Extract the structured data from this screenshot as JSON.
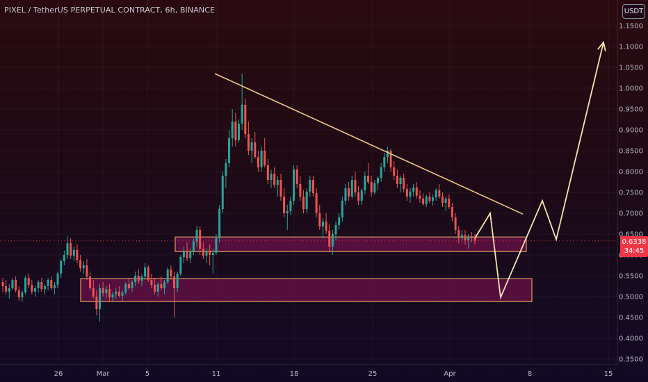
{
  "header": {
    "title": "PIXEL / TetherUS PERPETUAL CONTRACT, 6h, BINANCE",
    "currency_button": "USDT"
  },
  "last_price": {
    "value": "0.6338",
    "countdown": "34:45"
  },
  "colors": {
    "up": "#26a69a",
    "down": "#ef5350",
    "trendline": "#f0c987",
    "zone_fill": "#6b1248",
    "zone_border": "#d9a15a",
    "projection": "#f3e3b0",
    "price_tag": "#f23645"
  },
  "chart_data": {
    "type": "candlestick",
    "timeframe": "6h",
    "x_tick_labels": [
      "26",
      "Mar",
      "5",
      "11",
      "18",
      "25",
      "Apr",
      "8",
      "15"
    ],
    "y_tick_labels": [
      "1.1500",
      "1.1000",
      "1.0500",
      "1.0000",
      "0.9500",
      "0.9000",
      "0.8500",
      "0.8000",
      "0.7500",
      "0.7000",
      "0.6500",
      "0.6000",
      "0.5500",
      "0.5000",
      "0.4500",
      "0.4000",
      "0.3500"
    ],
    "ylim": [
      0.34,
      1.17
    ],
    "last_price": 0.6338,
    "candles": [
      [
        0.535,
        0.545,
        0.51,
        0.525
      ],
      [
        0.525,
        0.54,
        0.505,
        0.512
      ],
      [
        0.512,
        0.53,
        0.495,
        0.52
      ],
      [
        0.52,
        0.545,
        0.515,
        0.54
      ],
      [
        0.54,
        0.548,
        0.51,
        0.515
      ],
      [
        0.515,
        0.525,
        0.49,
        0.498
      ],
      [
        0.498,
        0.515,
        0.488,
        0.51
      ],
      [
        0.51,
        0.55,
        0.505,
        0.545
      ],
      [
        0.545,
        0.555,
        0.52,
        0.528
      ],
      [
        0.528,
        0.54,
        0.505,
        0.512
      ],
      [
        0.512,
        0.525,
        0.5,
        0.52
      ],
      [
        0.52,
        0.54,
        0.51,
        0.535
      ],
      [
        0.535,
        0.545,
        0.512,
        0.518
      ],
      [
        0.518,
        0.53,
        0.505,
        0.525
      ],
      [
        0.525,
        0.545,
        0.515,
        0.54
      ],
      [
        0.54,
        0.548,
        0.515,
        0.52
      ],
      [
        0.52,
        0.535,
        0.505,
        0.528
      ],
      [
        0.528,
        0.56,
        0.52,
        0.555
      ],
      [
        0.555,
        0.59,
        0.545,
        0.585
      ],
      [
        0.585,
        0.61,
        0.575,
        0.6
      ],
      [
        0.6,
        0.645,
        0.59,
        0.628
      ],
      [
        0.628,
        0.64,
        0.59,
        0.598
      ],
      [
        0.598,
        0.62,
        0.585,
        0.612
      ],
      [
        0.612,
        0.625,
        0.58,
        0.588
      ],
      [
        0.588,
        0.6,
        0.56,
        0.568
      ],
      [
        0.568,
        0.585,
        0.555,
        0.575
      ],
      [
        0.575,
        0.59,
        0.54,
        0.548
      ],
      [
        0.548,
        0.56,
        0.515,
        0.52
      ],
      [
        0.52,
        0.54,
        0.495,
        0.5
      ],
      [
        0.5,
        0.515,
        0.455,
        0.47
      ],
      [
        0.47,
        0.53,
        0.44,
        0.52
      ],
      [
        0.52,
        0.535,
        0.5,
        0.508
      ],
      [
        0.508,
        0.525,
        0.495,
        0.518
      ],
      [
        0.518,
        0.53,
        0.49,
        0.498
      ],
      [
        0.498,
        0.512,
        0.488,
        0.505
      ],
      [
        0.505,
        0.52,
        0.495,
        0.512
      ],
      [
        0.512,
        0.525,
        0.498,
        0.502
      ],
      [
        0.502,
        0.515,
        0.49,
        0.51
      ],
      [
        0.51,
        0.535,
        0.505,
        0.53
      ],
      [
        0.53,
        0.545,
        0.515,
        0.52
      ],
      [
        0.52,
        0.54,
        0.51,
        0.535
      ],
      [
        0.535,
        0.56,
        0.525,
        0.55
      ],
      [
        0.55,
        0.565,
        0.53,
        0.538
      ],
      [
        0.538,
        0.555,
        0.525,
        0.548
      ],
      [
        0.548,
        0.58,
        0.54,
        0.57
      ],
      [
        0.57,
        0.575,
        0.535,
        0.54
      ],
      [
        0.54,
        0.555,
        0.52,
        0.528
      ],
      [
        0.528,
        0.545,
        0.505,
        0.512
      ],
      [
        0.512,
        0.535,
        0.5,
        0.53
      ],
      [
        0.53,
        0.548,
        0.515,
        0.52
      ],
      [
        0.52,
        0.54,
        0.505,
        0.535
      ],
      [
        0.535,
        0.57,
        0.53,
        0.565
      ],
      [
        0.565,
        0.575,
        0.54,
        0.548
      ],
      [
        0.548,
        0.56,
        0.45,
        0.52
      ],
      [
        0.52,
        0.56,
        0.51,
        0.555
      ],
      [
        0.555,
        0.6,
        0.55,
        0.595
      ],
      [
        0.595,
        0.62,
        0.58,
        0.61
      ],
      [
        0.61,
        0.63,
        0.585,
        0.592
      ],
      [
        0.592,
        0.615,
        0.58,
        0.608
      ],
      [
        0.608,
        0.64,
        0.6,
        0.632
      ],
      [
        0.632,
        0.67,
        0.62,
        0.66
      ],
      [
        0.66,
        0.668,
        0.6,
        0.615
      ],
      [
        0.615,
        0.63,
        0.59,
        0.598
      ],
      [
        0.598,
        0.615,
        0.58,
        0.61
      ],
      [
        0.61,
        0.625,
        0.575,
        0.6
      ],
      [
        0.6,
        0.615,
        0.555,
        0.605
      ],
      [
        0.605,
        0.65,
        0.6,
        0.64
      ],
      [
        0.64,
        0.72,
        0.63,
        0.71
      ],
      [
        0.71,
        0.8,
        0.7,
        0.79
      ],
      [
        0.79,
        0.83,
        0.76,
        0.82
      ],
      [
        0.82,
        0.9,
        0.81,
        0.88
      ],
      [
        0.88,
        0.95,
        0.86,
        0.92
      ],
      [
        0.92,
        0.94,
        0.86,
        0.875
      ],
      [
        0.875,
        0.925,
        0.87,
        0.915
      ],
      [
        0.915,
        1.035,
        0.9,
        0.96
      ],
      [
        0.96,
        0.975,
        0.88,
        0.89
      ],
      [
        0.89,
        0.92,
        0.84,
        0.85
      ],
      [
        0.85,
        0.88,
        0.82,
        0.87
      ],
      [
        0.87,
        0.895,
        0.83,
        0.835
      ],
      [
        0.835,
        0.85,
        0.8,
        0.81
      ],
      [
        0.81,
        0.86,
        0.8,
        0.85
      ],
      [
        0.85,
        0.88,
        0.81,
        0.815
      ],
      [
        0.815,
        0.83,
        0.77,
        0.78
      ],
      [
        0.78,
        0.805,
        0.76,
        0.795
      ],
      [
        0.795,
        0.81,
        0.76,
        0.768
      ],
      [
        0.768,
        0.79,
        0.74,
        0.78
      ],
      [
        0.78,
        0.795,
        0.73,
        0.74
      ],
      [
        0.74,
        0.76,
        0.69,
        0.7
      ],
      [
        0.7,
        0.72,
        0.66,
        0.705
      ],
      [
        0.705,
        0.74,
        0.695,
        0.73
      ],
      [
        0.73,
        0.815,
        0.72,
        0.805
      ],
      [
        0.805,
        0.815,
        0.76,
        0.77
      ],
      [
        0.77,
        0.79,
        0.73,
        0.74
      ],
      [
        0.74,
        0.755,
        0.7,
        0.71
      ],
      [
        0.71,
        0.76,
        0.7,
        0.752
      ],
      [
        0.752,
        0.79,
        0.74,
        0.78
      ],
      [
        0.78,
        0.79,
        0.74,
        0.748
      ],
      [
        0.748,
        0.76,
        0.69,
        0.7
      ],
      [
        0.7,
        0.72,
        0.66,
        0.668
      ],
      [
        0.668,
        0.69,
        0.64,
        0.68
      ],
      [
        0.68,
        0.7,
        0.65,
        0.658
      ],
      [
        0.658,
        0.675,
        0.61,
        0.62
      ],
      [
        0.62,
        0.66,
        0.6,
        0.65
      ],
      [
        0.65,
        0.68,
        0.635,
        0.672
      ],
      [
        0.672,
        0.7,
        0.66,
        0.69
      ],
      [
        0.69,
        0.74,
        0.68,
        0.73
      ],
      [
        0.73,
        0.77,
        0.72,
        0.76
      ],
      [
        0.76,
        0.775,
        0.73,
        0.74
      ],
      [
        0.74,
        0.79,
        0.735,
        0.78
      ],
      [
        0.78,
        0.8,
        0.74,
        0.75
      ],
      [
        0.75,
        0.765,
        0.72,
        0.73
      ],
      [
        0.73,
        0.76,
        0.72,
        0.755
      ],
      [
        0.755,
        0.8,
        0.745,
        0.79
      ],
      [
        0.79,
        0.82,
        0.77,
        0.775
      ],
      [
        0.775,
        0.79,
        0.74,
        0.75
      ],
      [
        0.75,
        0.78,
        0.745,
        0.772
      ],
      [
        0.772,
        0.79,
        0.755,
        0.785
      ],
      [
        0.785,
        0.82,
        0.775,
        0.81
      ],
      [
        0.81,
        0.845,
        0.8,
        0.835
      ],
      [
        0.835,
        0.86,
        0.82,
        0.85
      ],
      [
        0.85,
        0.855,
        0.8,
        0.81
      ],
      [
        0.81,
        0.825,
        0.78,
        0.79
      ],
      [
        0.79,
        0.805,
        0.76,
        0.77
      ],
      [
        0.77,
        0.79,
        0.75,
        0.785
      ],
      [
        0.785,
        0.795,
        0.75,
        0.758
      ],
      [
        0.758,
        0.77,
        0.73,
        0.74
      ],
      [
        0.74,
        0.76,
        0.725,
        0.752
      ],
      [
        0.752,
        0.77,
        0.74,
        0.762
      ],
      [
        0.762,
        0.775,
        0.735,
        0.742
      ],
      [
        0.742,
        0.755,
        0.725,
        0.735
      ],
      [
        0.735,
        0.748,
        0.718,
        0.722
      ],
      [
        0.722,
        0.745,
        0.715,
        0.74
      ],
      [
        0.74,
        0.75,
        0.725,
        0.73
      ],
      [
        0.73,
        0.745,
        0.718,
        0.738
      ],
      [
        0.738,
        0.76,
        0.73,
        0.755
      ],
      [
        0.755,
        0.77,
        0.735,
        0.74
      ],
      [
        0.74,
        0.75,
        0.715,
        0.725
      ],
      [
        0.725,
        0.74,
        0.705,
        0.735
      ],
      [
        0.735,
        0.745,
        0.71,
        0.715
      ],
      [
        0.715,
        0.725,
        0.68,
        0.69
      ],
      [
        0.69,
        0.7,
        0.65,
        0.66
      ],
      [
        0.66,
        0.67,
        0.628,
        0.64
      ],
      [
        0.64,
        0.66,
        0.63,
        0.648
      ],
      [
        0.648,
        0.66,
        0.625,
        0.635
      ],
      [
        0.635,
        0.65,
        0.615,
        0.645
      ],
      [
        0.645,
        0.655,
        0.63,
        0.64
      ],
      [
        0.64,
        0.65,
        0.625,
        0.634
      ]
    ],
    "trendline": [
      [
        309,
        1.035
      ],
      [
        752,
        0.698
      ]
    ],
    "zones": [
      {
        "x1": 252,
        "x2": 757,
        "y_top": 0.643,
        "y_bottom": 0.608
      },
      {
        "x1": 116,
        "x2": 765,
        "y_top": 0.543,
        "y_bottom": 0.488
      }
    ],
    "projection_path": [
      [
        683,
        0.64
      ],
      [
        705,
        0.7
      ],
      [
        720,
        0.498
      ],
      [
        780,
        0.73
      ],
      [
        800,
        0.637
      ],
      [
        868,
        1.11
      ]
    ]
  }
}
